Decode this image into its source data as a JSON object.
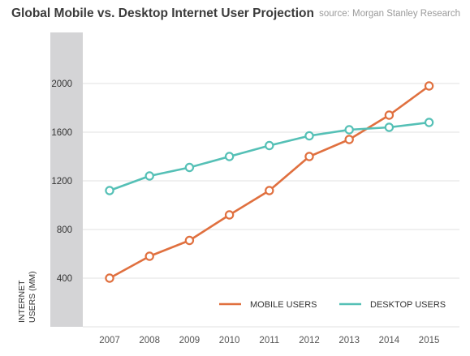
{
  "title": "Global Mobile vs. Desktop Internet User Projection",
  "source": "source: Morgan Stanley Research",
  "chart_data": {
    "type": "line",
    "title": "Global Mobile vs. Desktop Internet User Projection",
    "ylabel_line1": "INTERNET",
    "ylabel_line2": "USERS (MM)",
    "xlabel": "",
    "x": [
      "2007",
      "2008",
      "2009",
      "2010",
      "2011",
      "2012",
      "2013",
      "2014",
      "2015"
    ],
    "yticks": [
      400,
      800,
      1200,
      1600,
      2000
    ],
    "ylim": [
      0,
      2400
    ],
    "grid": "horizontal",
    "legend_position": "bottom-right",
    "series": [
      {
        "name": "MOBILE USERS",
        "color": "#e0703f",
        "values": [
          400,
          580,
          710,
          920,
          1120,
          1400,
          1540,
          1740,
          1980
        ]
      },
      {
        "name": "DESKTOP USERS",
        "color": "#55c0b6",
        "values": [
          1120,
          1240,
          1310,
          1400,
          1490,
          1570,
          1620,
          1640,
          1680
        ]
      }
    ]
  }
}
